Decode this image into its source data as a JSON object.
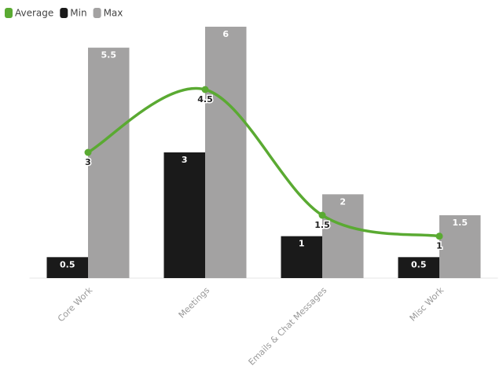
{
  "chart_data": {
    "type": "bar-line",
    "categories": [
      "Core Work",
      "Meetings",
      "Emails & Chat Messages",
      "Misc Work"
    ],
    "series": [
      {
        "name": "Average",
        "type": "line",
        "color": "#5aaa32",
        "values": [
          3,
          4.5,
          1.5,
          1
        ]
      },
      {
        "name": "Min",
        "type": "bar",
        "color": "#1a1a1a",
        "values": [
          0.5,
          3,
          1,
          0.5
        ]
      },
      {
        "name": "Max",
        "type": "bar",
        "color": "#a3a2a2",
        "values": [
          5.5,
          6,
          2,
          1.5
        ]
      }
    ],
    "ylim": [
      0,
      6
    ],
    "legend": "top-left"
  }
}
